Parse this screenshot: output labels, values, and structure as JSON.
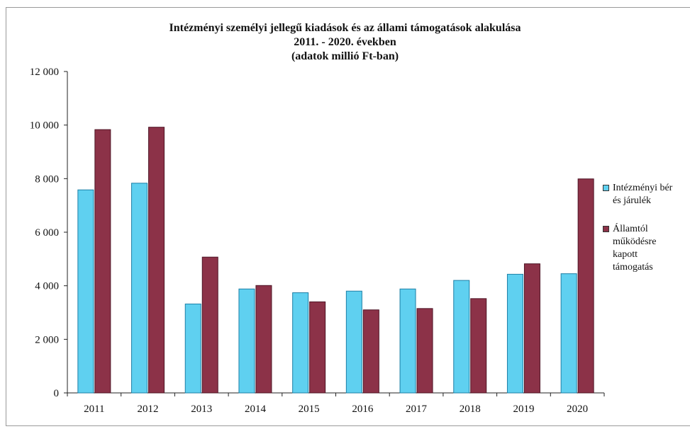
{
  "chart_data": {
    "type": "bar",
    "title_lines": [
      "Intézményi személyi jellegű kiadások és az állami támogatások alakulása",
      "2011. - 2020. években",
      "(adatok millió Ft-ban)"
    ],
    "categories": [
      "2011",
      "2012",
      "2013",
      "2014",
      "2015",
      "2016",
      "2017",
      "2018",
      "2019",
      "2020"
    ],
    "series": [
      {
        "name_lines": [
          "Intézményi bér",
          "és járulék"
        ],
        "color": "#5fd0f0",
        "values": [
          7580,
          7830,
          3320,
          3880,
          3740,
          3800,
          3880,
          4200,
          4430,
          4450
        ]
      },
      {
        "name_lines": [
          "Államtól",
          "működésre",
          "kapott",
          "támogatás"
        ],
        "color": "#8c3248",
        "values": [
          9830,
          9920,
          5070,
          4010,
          3400,
          3100,
          3150,
          3520,
          4820,
          7990
        ]
      }
    ],
    "yticks": [
      "0",
      "2 000",
      "4 000",
      "6 000",
      "8 000",
      "10 000",
      "12 000"
    ],
    "ylim": [
      0,
      12000
    ],
    "grid": false,
    "legend": "right"
  }
}
